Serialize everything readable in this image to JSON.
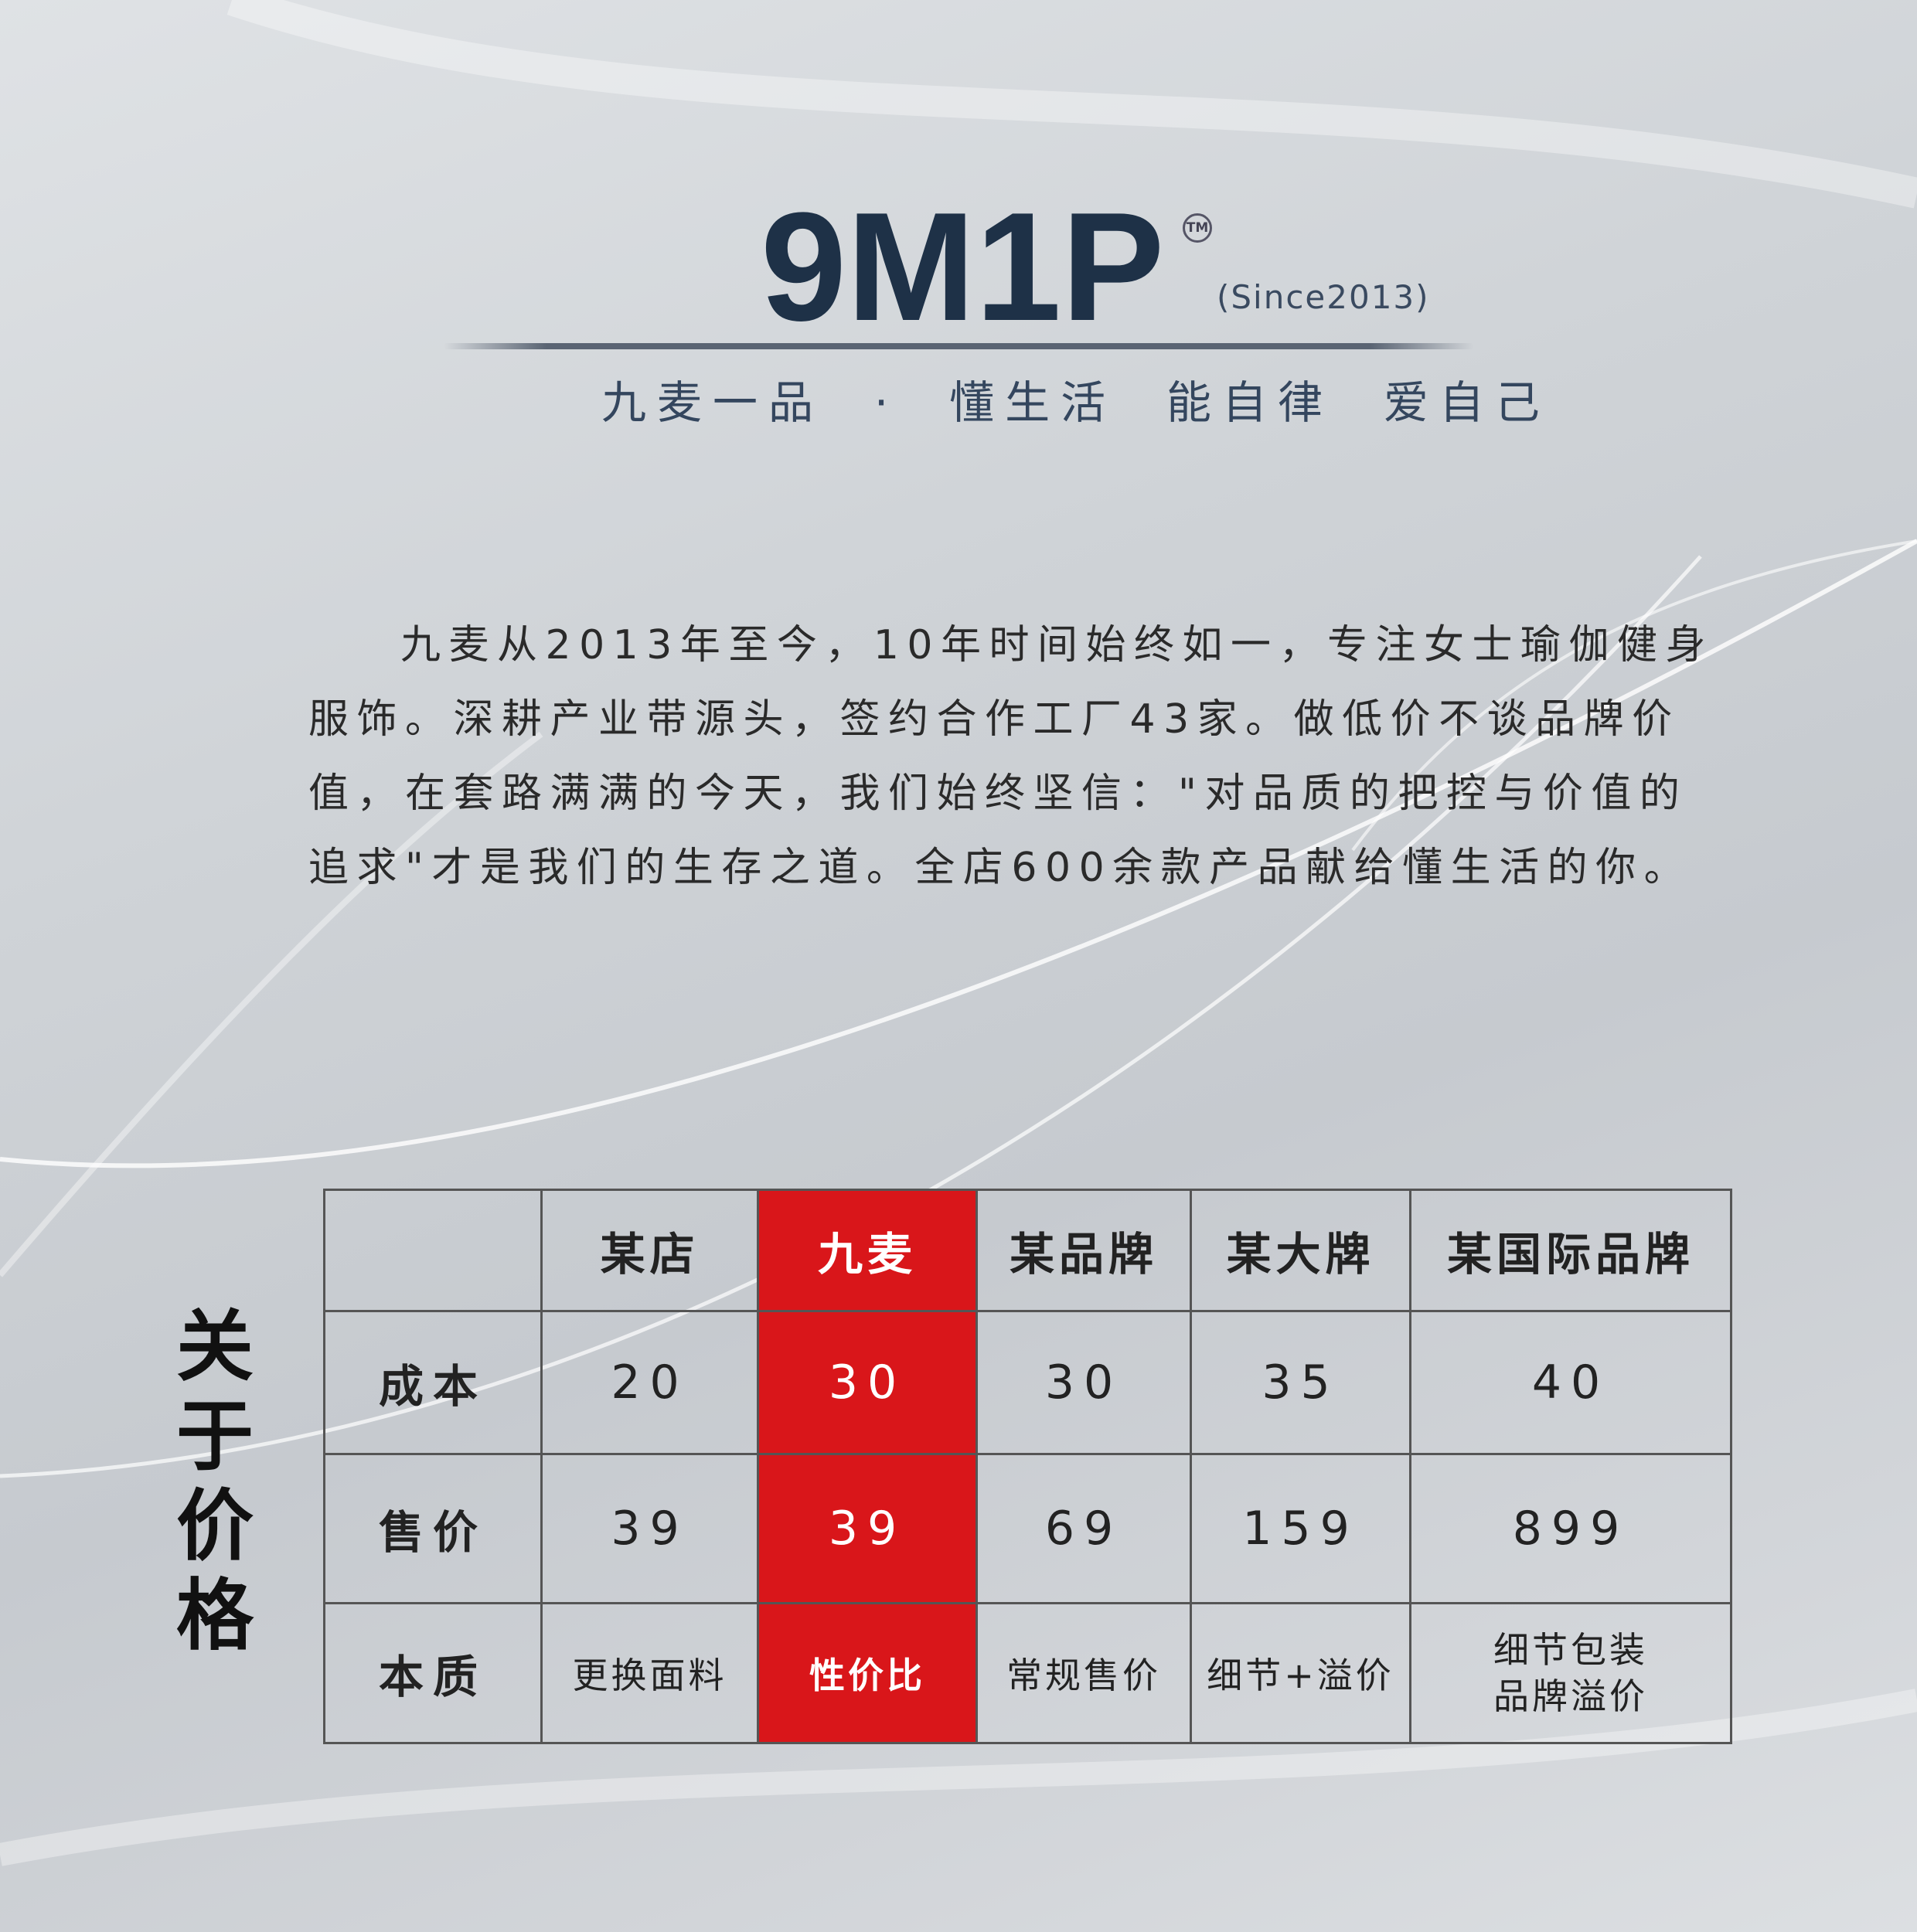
{
  "brand": {
    "logo": "9M1P",
    "trademark": "TM",
    "since": "(Since2013)",
    "tagline": "九麦一品  ·  懂生活  能自律  爱自己"
  },
  "intro": {
    "lines": [
      "九麦从2013年至今，10年时间始终如一，专注女士瑜伽健身",
      "服饰。深耕产业带源头，签约合作工厂43家。做低价不谈品牌价",
      "值，在套路满满的今天，我们始终坚信：\"对品质的把控与价值的",
      "追求\"才是我们的生存之道。全店600余款产品献给懂生活的你。"
    ]
  },
  "side_title": [
    "关",
    "于",
    "价",
    "格"
  ],
  "colors": {
    "highlight": "#d9161a",
    "logo": "#1e3147"
  },
  "table": {
    "headers": [
      "",
      "某店",
      "九麦",
      "某品牌",
      "某大牌",
      "某国际品牌"
    ],
    "rows": [
      {
        "label": "成本",
        "values": [
          "20",
          "30",
          "30",
          "35",
          "40"
        ]
      },
      {
        "label": "售价",
        "values": [
          "39",
          "39",
          "69",
          "159",
          "899"
        ]
      },
      {
        "label": "本质",
        "values": [
          "更换面料",
          "性价比",
          "常规售价",
          "细节+溢价",
          [
            "细节包装",
            "品牌溢价"
          ]
        ]
      }
    ]
  }
}
